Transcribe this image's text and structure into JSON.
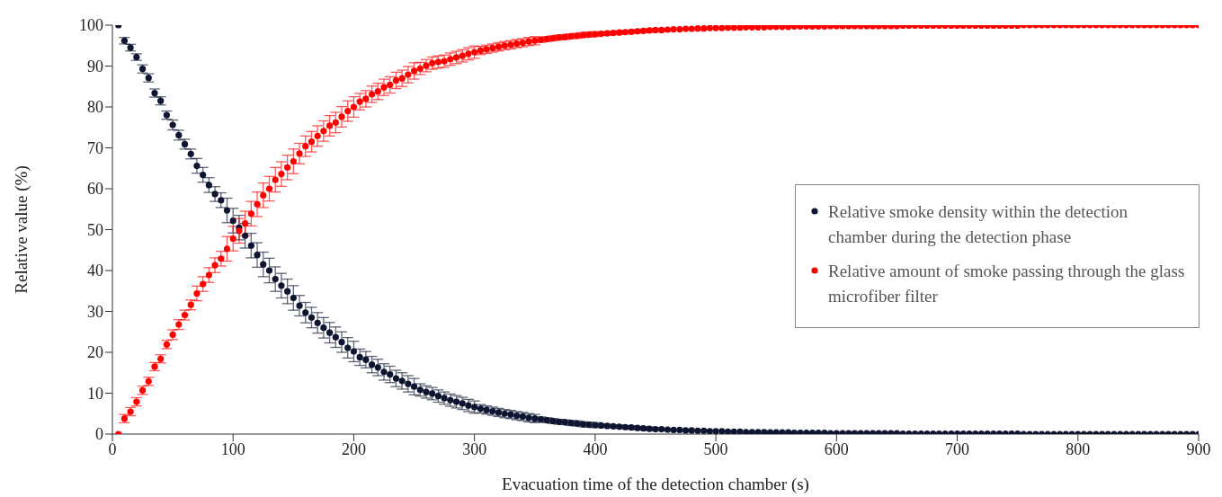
{
  "chart_data": {
    "type": "scatter",
    "xlabel": "Evacuation time of the detection chamber (s)",
    "ylabel": "Relative value (%)",
    "x": [
      5,
      10,
      15,
      20,
      25,
      30,
      35,
      40,
      45,
      50,
      55,
      60,
      65,
      70,
      75,
      80,
      85,
      90,
      95,
      100,
      105,
      110,
      115,
      120,
      125,
      130,
      135,
      140,
      145,
      150,
      155,
      160,
      165,
      170,
      175,
      180,
      185,
      190,
      195,
      200,
      205,
      210,
      215,
      220,
      225,
      230,
      235,
      240,
      245,
      250,
      255,
      260,
      265,
      270,
      275,
      280,
      285,
      290,
      295,
      300,
      305,
      310,
      315,
      320,
      325,
      330,
      335,
      340,
      345,
      350,
      355,
      360,
      365,
      370,
      375,
      380,
      385,
      390,
      395,
      400,
      405,
      410,
      415,
      420,
      425,
      430,
      435,
      440,
      445,
      450,
      455,
      460,
      465,
      470,
      475,
      480,
      485,
      490,
      495,
      500,
      505,
      510,
      515,
      520,
      525,
      530,
      535,
      540,
      545,
      550,
      555,
      560,
      565,
      570,
      575,
      580,
      585,
      590,
      595,
      600,
      605,
      610,
      615,
      620,
      625,
      630,
      635,
      640,
      645,
      650,
      655,
      660,
      665,
      670,
      675,
      680,
      685,
      690,
      695,
      700,
      705,
      710,
      715,
      720,
      725,
      730,
      735,
      740,
      745,
      750,
      755,
      760,
      765,
      770,
      775,
      780,
      785,
      790,
      795,
      800,
      805,
      810,
      815,
      820,
      825,
      830,
      835,
      840,
      845,
      850,
      855,
      860,
      865,
      870,
      875,
      880,
      885,
      890,
      895,
      900
    ],
    "series": [
      {
        "name": "Relative smoke density within the detection chamber during the detection phase",
        "color": "#0d1530",
        "values": [
          100,
          96.2,
          94.5,
          92.2,
          89.3,
          87.1,
          83.4,
          81.5,
          78.0,
          75.6,
          73.1,
          70.9,
          68.5,
          65.6,
          63.4,
          60.9,
          58.7,
          57.2,
          54.7,
          52.2,
          50.5,
          48.5,
          46.1,
          43.8,
          41.5,
          40.0,
          37.9,
          36.3,
          34.9,
          33.3,
          31.4,
          29.7,
          28.5,
          27.2,
          26.0,
          24.8,
          23.7,
          22.5,
          21.1,
          20.2,
          18.8,
          18.2,
          17.0,
          16.3,
          15.2,
          14.6,
          13.6,
          13.0,
          12.3,
          11.6,
          10.8,
          10.3,
          9.9,
          9.3,
          8.8,
          8.3,
          7.9,
          7.5,
          7.0,
          6.6,
          6.2,
          5.9,
          5.6,
          5.3,
          5.0,
          4.8,
          4.5,
          4.3,
          4.0,
          3.8,
          3.6,
          3.4,
          3.2,
          3.0,
          2.9,
          2.7,
          2.6,
          2.4,
          2.3,
          2.2,
          2.1,
          2.0,
          1.9,
          1.8,
          1.7,
          1.6,
          1.5,
          1.4,
          1.3,
          1.2,
          1.2,
          1.1,
          1.0,
          1.0,
          0.9,
          0.9,
          0.8,
          0.8,
          0.7,
          0.7,
          0.7,
          0.6,
          0.6,
          0.6,
          0.5,
          0.5,
          0.5,
          0.5,
          0.4,
          0.4,
          0.4,
          0.4,
          0.3,
          0.3,
          0.3,
          0.3,
          0.3,
          0.3,
          0.2,
          0.2,
          0.2,
          0.2,
          0.2,
          0.2,
          0.2,
          0.2,
          0.2,
          0.2,
          0.2,
          0.2,
          0.1,
          0.1,
          0.1,
          0.1,
          0.1,
          0.1,
          0.1,
          0.1,
          0.1,
          0.1,
          0.1,
          0.1,
          0.1,
          0.1,
          0.1,
          0.1,
          0.1,
          0.1,
          0.1,
          0.1,
          0,
          0,
          0,
          0,
          0,
          0,
          0,
          0,
          0,
          0,
          0,
          0,
          0,
          0,
          0,
          0,
          0,
          0,
          0,
          0,
          0,
          0,
          0,
          0,
          0,
          0,
          0,
          0,
          0,
          0
        ],
        "errors": [
          null,
          0.8,
          0.8,
          0.8,
          1,
          1,
          1,
          1,
          1,
          1.2,
          1.2,
          1.2,
          1.2,
          1.8,
          1.8,
          1.8,
          1.8,
          1.8,
          3,
          3,
          3,
          3,
          3,
          3,
          3,
          3,
          3,
          3,
          3,
          3,
          2.5,
          2.5,
          2.5,
          2.5,
          2.5,
          2.5,
          2.5,
          2.5,
          2.5,
          2.5,
          2,
          2,
          2,
          2,
          2,
          2,
          2,
          2,
          2,
          2,
          1.5,
          1.5,
          1.5,
          1.5,
          1.5,
          1.5,
          1.5,
          1.5,
          1.5,
          1.5,
          1,
          1,
          1,
          1,
          1,
          1,
          1,
          1,
          1,
          1,
          0.6,
          0.6,
          0.6,
          0.6,
          0.6,
          0.6,
          0.6,
          0.6,
          0.6,
          0.6,
          0.4,
          0.4,
          0.4,
          0.4,
          0.4,
          0.4,
          0.4,
          0.4,
          0.4,
          0.4,
          null,
          null,
          null,
          null,
          null,
          null,
          null,
          null,
          null,
          null,
          null,
          null,
          null,
          null,
          null,
          null,
          null,
          null,
          null,
          null,
          null,
          null,
          null,
          null,
          null,
          null,
          null,
          null,
          null,
          null,
          null,
          null,
          null,
          null,
          null,
          null,
          null,
          null,
          null,
          null,
          null,
          null,
          null,
          null,
          null,
          null,
          null,
          null,
          null,
          null,
          null,
          null,
          null,
          null,
          null,
          null,
          null,
          null,
          null,
          null,
          null,
          null,
          null,
          null,
          null,
          null,
          null,
          null,
          null,
          null,
          null,
          null,
          null,
          null,
          null,
          null,
          null,
          null,
          null,
          null,
          null,
          null,
          null,
          null,
          null,
          null,
          null,
          null,
          null,
          null
        ]
      },
      {
        "name": "Relative amount of smoke passing through the glass microfiber filter",
        "color": "#ff0000",
        "values": [
          0,
          3.8,
          5.5,
          7.9,
          10.7,
          12.9,
          16.5,
          18.4,
          21.9,
          24.3,
          26.8,
          29.1,
          31.6,
          34.4,
          36.7,
          38.9,
          41.3,
          42.9,
          45.3,
          47.8,
          49.7,
          51.5,
          53.9,
          56.2,
          58.4,
          60.0,
          62.2,
          63.6,
          65.2,
          66.7,
          68.6,
          70.4,
          71.5,
          72.9,
          74.1,
          75.4,
          76.2,
          77.6,
          79.0,
          80.0,
          81.3,
          82.0,
          83.1,
          83.8,
          84.8,
          85.4,
          86.5,
          87.0,
          87.9,
          88.8,
          89.4,
          90.1,
          90.7,
          91.0,
          91.2,
          91.7,
          92.1,
          92.5,
          93.0,
          93.4,
          93.8,
          94.1,
          94.4,
          94.7,
          95.0,
          95.2,
          95.5,
          95.7,
          96.0,
          96.2,
          96.4,
          96.6,
          96.8,
          97.0,
          97.1,
          97.3,
          97.4,
          97.6,
          97.7,
          97.8,
          97.9,
          98.0,
          98.1,
          98.2,
          98.3,
          98.4,
          98.5,
          98.6,
          98.7,
          98.8,
          98.8,
          98.9,
          99.0,
          99.0,
          99.1,
          99.1,
          99.2,
          99.2,
          99.3,
          99.3,
          99.3,
          99.4,
          99.4,
          99.4,
          99.5,
          99.5,
          99.5,
          99.5,
          99.6,
          99.6,
          99.6,
          99.6,
          99.7,
          99.7,
          99.7,
          99.7,
          99.7,
          99.7,
          99.8,
          99.8,
          99.8,
          99.8,
          99.8,
          99.8,
          99.8,
          99.8,
          99.8,
          99.8,
          99.8,
          99.8,
          99.9,
          99.9,
          99.9,
          99.9,
          99.9,
          99.9,
          99.9,
          99.9,
          99.9,
          99.9,
          99.9,
          99.9,
          99.9,
          99.9,
          99.9,
          99.9,
          99.9,
          99.9,
          99.9,
          99.9,
          100,
          100,
          100,
          100,
          100,
          100,
          100,
          100,
          100,
          100,
          100,
          100,
          100,
          100,
          100,
          100,
          100,
          100,
          100,
          100,
          100,
          100,
          100,
          100,
          100,
          100,
          100,
          100,
          100,
          100
        ],
        "errors": [
          null,
          1,
          1,
          1,
          1,
          1,
          1,
          1,
          1,
          1.2,
          1.2,
          1.2,
          1.2,
          1.8,
          1.8,
          1.8,
          1.8,
          1.8,
          3,
          3,
          3,
          3,
          3,
          3,
          3,
          3,
          3,
          3,
          3,
          3,
          2.5,
          2.5,
          2.5,
          2.5,
          2.5,
          2.5,
          2.5,
          2.5,
          2.5,
          2.5,
          2,
          2,
          2,
          2,
          2,
          2,
          2,
          2,
          2,
          2,
          1.5,
          1.5,
          1.5,
          1.5,
          1.5,
          1.5,
          1.5,
          1.5,
          1.5,
          1.5,
          1,
          1,
          1,
          1,
          1,
          1,
          1,
          1,
          1,
          1,
          0.6,
          0.6,
          0.6,
          0.6,
          0.6,
          0.6,
          0.6,
          0.6,
          0.6,
          0.6,
          0.4,
          0.4,
          0.4,
          0.4,
          0.4,
          0.4,
          0.4,
          0.4,
          0.4,
          0.4,
          null,
          null,
          null,
          null,
          null,
          null,
          null,
          null,
          null,
          null,
          null,
          null,
          null,
          null,
          null,
          null,
          null,
          null,
          null,
          null,
          null,
          null,
          null,
          null,
          null,
          null,
          null,
          null,
          null,
          null,
          null,
          null,
          null,
          null,
          null,
          null,
          null,
          null,
          null,
          null,
          null,
          null,
          null,
          null,
          null,
          null,
          null,
          null,
          null,
          null,
          null,
          null,
          null,
          null,
          null,
          null,
          null,
          null,
          null,
          null,
          null,
          null,
          null,
          null,
          null,
          null,
          null,
          null,
          null,
          null,
          null,
          null,
          null,
          null,
          null,
          null,
          null,
          null,
          null,
          null,
          null,
          null,
          null,
          null,
          null,
          null,
          null,
          null,
          null,
          null
        ]
      }
    ],
    "xlim": [
      0,
      900
    ],
    "xticks": [
      0,
      100,
      200,
      300,
      400,
      500,
      600,
      700,
      800,
      900
    ],
    "ylim": [
      0,
      100
    ],
    "yticks": [
      0,
      10,
      20,
      30,
      40,
      50,
      60,
      70,
      80,
      90,
      100
    ],
    "grid": false,
    "legend": "right",
    "marker": "circle"
  }
}
